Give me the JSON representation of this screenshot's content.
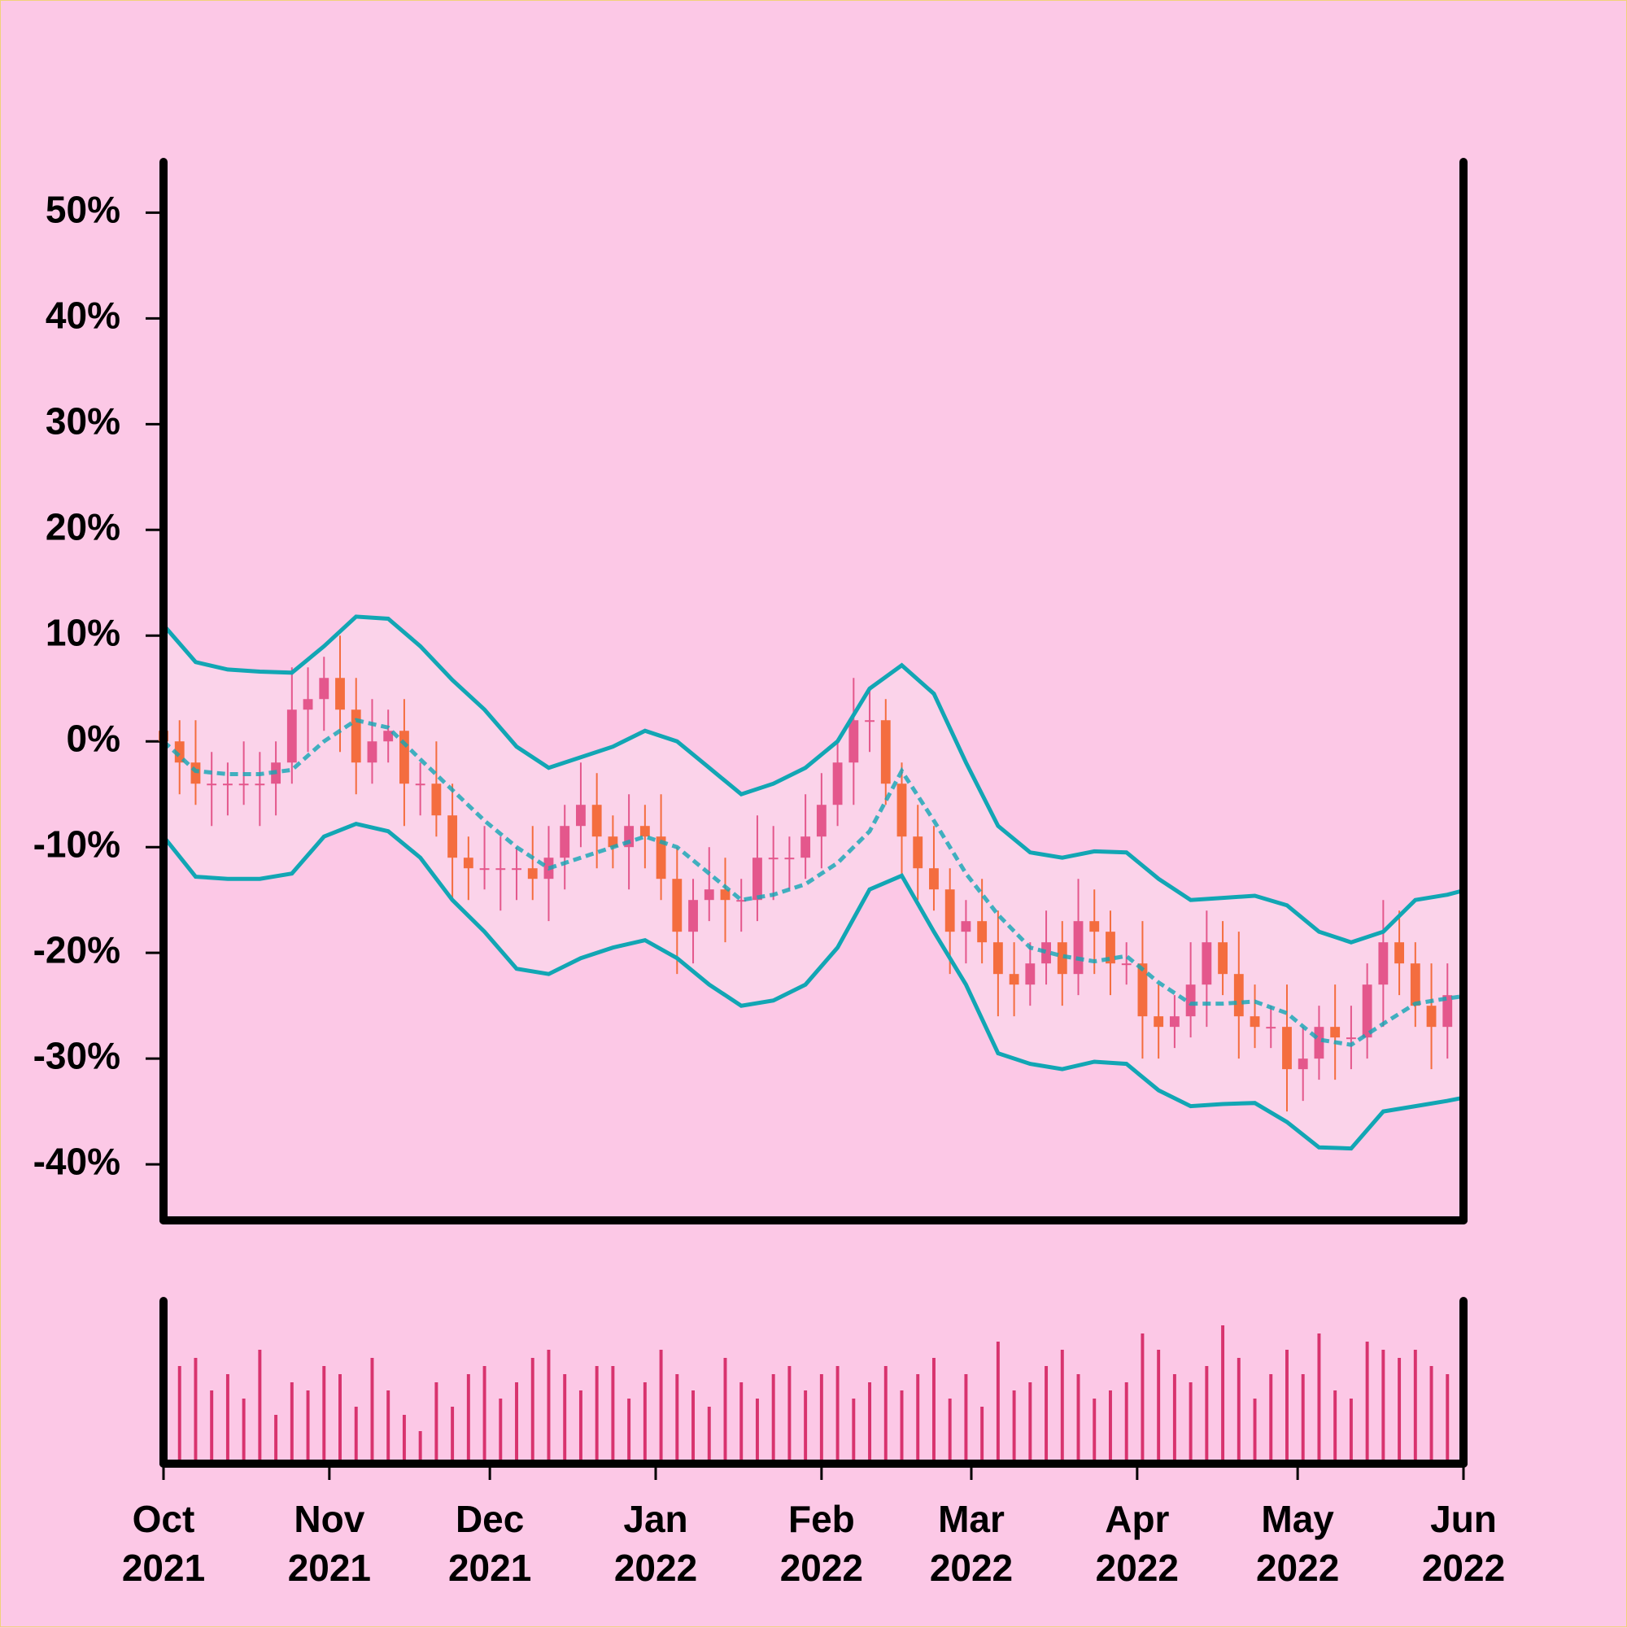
{
  "chart_data": {
    "type": "candlestick",
    "x": [
      0,
      3,
      6,
      9,
      12,
      15,
      18,
      21,
      24,
      27,
      30,
      33,
      36,
      39,
      42,
      45,
      48,
      51,
      54,
      57,
      60,
      63,
      66,
      69,
      72,
      75,
      78,
      81,
      84,
      87,
      90,
      93,
      96,
      99,
      102,
      105,
      108,
      111,
      114,
      117,
      120,
      123,
      126,
      129,
      132,
      135,
      138,
      141,
      144,
      147,
      150,
      153,
      156,
      159,
      162,
      165,
      168,
      171,
      174,
      177,
      180,
      183,
      186,
      189,
      192,
      195,
      198,
      201,
      204,
      207,
      210,
      213,
      216,
      219,
      222,
      225,
      228,
      231,
      234,
      237,
      240
    ],
    "open": [
      1,
      0,
      -2,
      -4,
      -4,
      -4,
      -4,
      -4,
      -2,
      3,
      4,
      6,
      3,
      -2,
      0,
      1,
      -4,
      -4,
      -7,
      -11,
      -12,
      -12,
      -12,
      -12,
      -13,
      -11,
      -8,
      -6,
      -9,
      -10,
      -8,
      -9,
      -13,
      -18,
      -15,
      -14,
      -15,
      -15,
      -11,
      -11,
      -11,
      -9,
      -6,
      -2,
      2,
      2,
      -4,
      -9,
      -12,
      -14,
      -18,
      -17,
      -19,
      -22,
      -23,
      -21,
      -19,
      -22,
      -17,
      -18,
      -21,
      -21,
      -26,
      -27,
      -26,
      -23,
      -19,
      -22,
      -26,
      -27,
      -27,
      -31,
      -30,
      -27,
      -28,
      -28,
      -23,
      -19,
      -21,
      -25,
      -27
    ],
    "high": [
      4,
      2,
      2,
      -1,
      -2,
      0,
      -1,
      0,
      7,
      7,
      8,
      10,
      6,
      4,
      3,
      4,
      -2,
      0,
      -4,
      -9,
      -8,
      -9,
      -10,
      -8,
      -8,
      -6,
      -2,
      -3,
      -7,
      -5,
      -6,
      -5,
      -10,
      -13,
      -10,
      -11,
      -13,
      -7,
      -8,
      -9,
      -5,
      -3,
      0,
      6,
      5,
      4,
      -2,
      -6,
      -8,
      -12,
      -15,
      -13,
      -16,
      -19,
      -19,
      -16,
      -17,
      -13,
      -14,
      -16,
      -19,
      -17,
      -23,
      -24,
      -19,
      -16,
      -17,
      -18,
      -23,
      -25,
      -23,
      -27,
      -25,
      -23,
      -25,
      -21,
      -15,
      -16,
      -19,
      -21,
      -21
    ],
    "low": [
      -4,
      -5,
      -6,
      -8,
      -7,
      -6,
      -8,
      -7,
      -4,
      -1,
      1,
      -1,
      -5,
      -4,
      -2,
      -8,
      -7,
      -9,
      -15,
      -15,
      -14,
      -16,
      -15,
      -15,
      -17,
      -14,
      -10,
      -12,
      -12,
      -14,
      -12,
      -15,
      -22,
      -21,
      -17,
      -19,
      -18,
      -17,
      -15,
      -14,
      -13,
      -12,
      -8,
      -6,
      -1,
      -6,
      -13,
      -15,
      -16,
      -22,
      -21,
      -21,
      -26,
      -26,
      -25,
      -23,
      -25,
      -24,
      -22,
      -24,
      -23,
      -30,
      -30,
      -29,
      -28,
      -27,
      -24,
      -30,
      -29,
      -29,
      -35,
      -34,
      -32,
      -32,
      -31,
      -30,
      -27,
      -24,
      -27,
      -31,
      -30
    ],
    "close": [
      0,
      -2,
      -4,
      -4,
      -4,
      -4,
      -4,
      -2,
      3,
      4,
      6,
      3,
      -2,
      0,
      1,
      -4,
      -4,
      -7,
      -11,
      -12,
      -12,
      -12,
      -12,
      -13,
      -11,
      -8,
      -6,
      -9,
      -10,
      -8,
      -9,
      -13,
      -18,
      -15,
      -14,
      -15,
      -15,
      -11,
      -11,
      -11,
      -9,
      -6,
      -2,
      2,
      2,
      -4,
      -9,
      -12,
      -14,
      -18,
      -17,
      -19,
      -22,
      -23,
      -21,
      -19,
      -22,
      -17,
      -18,
      -21,
      -21,
      -26,
      -27,
      -26,
      -23,
      -19,
      -22,
      -26,
      -27,
      -27,
      -31,
      -30,
      -27,
      -28,
      -28,
      -23,
      -19,
      -21,
      -25,
      -27,
      -24
    ],
    "up_color": "#e4578c",
    "down_color": "#f46d3f",
    "xlim": [
      0,
      243
    ],
    "xticks": [
      {
        "value": 0,
        "label": "Oct\n2021"
      },
      {
        "value": 31,
        "label": "Nov\n2021"
      },
      {
        "value": 61,
        "label": "Dec\n2021"
      },
      {
        "value": 92,
        "label": "Jan\n2022"
      },
      {
        "value": 123,
        "label": "Feb\n2022"
      },
      {
        "value": 151,
        "label": "Mar\n2022"
      },
      {
        "value": 182,
        "label": "Apr\n2022"
      },
      {
        "value": 212,
        "label": "May\n2022"
      },
      {
        "value": 243,
        "label": "Jun\n2022"
      }
    ],
    "ylim": [
      -45.3,
      54.8
    ],
    "yticks": [
      {
        "value": 50,
        "label": "50%"
      },
      {
        "value": 40,
        "label": "40%"
      },
      {
        "value": 30,
        "label": "30%"
      },
      {
        "value": 20,
        "label": "20%"
      },
      {
        "value": 10,
        "label": "10%"
      },
      {
        "value": 0,
        "label": "0%"
      },
      {
        "value": -10,
        "label": "-10%"
      },
      {
        "value": -20,
        "label": "-20%"
      },
      {
        "value": -30,
        "label": "-30%"
      },
      {
        "value": -40,
        "label": "-40%"
      }
    ],
    "bands": {
      "x": [
        0,
        6,
        12,
        18,
        24,
        30,
        36,
        42,
        48,
        54,
        60,
        66,
        72,
        78,
        84,
        90,
        96,
        102,
        108,
        114,
        120,
        126,
        132,
        138,
        144,
        150,
        156,
        162,
        168,
        174,
        180,
        186,
        192,
        198,
        204,
        210,
        216,
        222,
        228,
        234,
        240,
        243
      ],
      "upper": [
        11,
        7.5,
        6.8,
        6.6,
        6.5,
        9,
        11.8,
        11.6,
        9,
        5.8,
        3,
        -0.5,
        -2.5,
        -1.5,
        -0.5,
        1,
        0,
        -2.5,
        -5,
        -4,
        -2.5,
        0,
        5,
        7.2,
        4.5,
        -2,
        -8,
        -10.5,
        -11,
        -10.4,
        -10.5,
        -13,
        -15,
        -14.8,
        -14.6,
        -15.5,
        -18,
        -19,
        -18,
        -15,
        -14.5,
        -14.1
      ],
      "middle": [
        0,
        -2.8,
        -3.1,
        -3.1,
        -2.7,
        0,
        2,
        1.3,
        -1.7,
        -4.6,
        -7.5,
        -10,
        -12,
        -11,
        -10,
        -9,
        -10,
        -12.5,
        -15,
        -14.5,
        -13.5,
        -11.5,
        -8.5,
        -2.8,
        -7.5,
        -12.5,
        -16.4,
        -19.5,
        -20.3,
        -20.8,
        -20.3,
        -22.8,
        -24.8,
        -24.8,
        -24.6,
        -25.7,
        -28.2,
        -28.7,
        -26.7,
        -24.8,
        -24.3,
        -24.1
      ],
      "lower": [
        -9,
        -12.8,
        -13,
        -13,
        -12.5,
        -9,
        -7.8,
        -8.5,
        -11,
        -15,
        -18,
        -21.5,
        -22,
        -20.5,
        -19.5,
        -18.8,
        -20.5,
        -23,
        -25,
        -24.5,
        -23,
        -19.5,
        -14,
        -12.7,
        -18,
        -23,
        -29.5,
        -30.5,
        -31,
        -30.3,
        -30.5,
        -33,
        -34.5,
        -34.3,
        -34.2,
        -36,
        -38.4,
        -38.5,
        -35,
        -34.5,
        -34,
        -33.7
      ],
      "color": "#12a6b4",
      "fill": "#fbd3ea"
    },
    "volume": {
      "values": [
        20,
        60,
        65,
        45,
        55,
        40,
        70,
        30,
        50,
        45,
        60,
        55,
        35,
        65,
        45,
        30,
        20,
        50,
        35,
        55,
        60,
        40,
        50,
        65,
        70,
        55,
        45,
        60,
        60,
        40,
        50,
        70,
        55,
        45,
        35,
        65,
        50,
        40,
        55,
        60,
        45,
        55,
        60,
        40,
        50,
        60,
        45,
        55,
        65,
        40,
        55,
        35,
        75,
        45,
        50,
        60,
        70,
        55,
        40,
        45,
        50,
        80,
        70,
        55,
        50,
        60,
        85,
        65,
        40,
        55,
        70,
        55,
        80,
        45,
        40,
        75,
        70,
        65,
        70,
        60,
        55
      ],
      "ylim": [
        0,
        100
      ],
      "color": "#d8336e"
    }
  }
}
